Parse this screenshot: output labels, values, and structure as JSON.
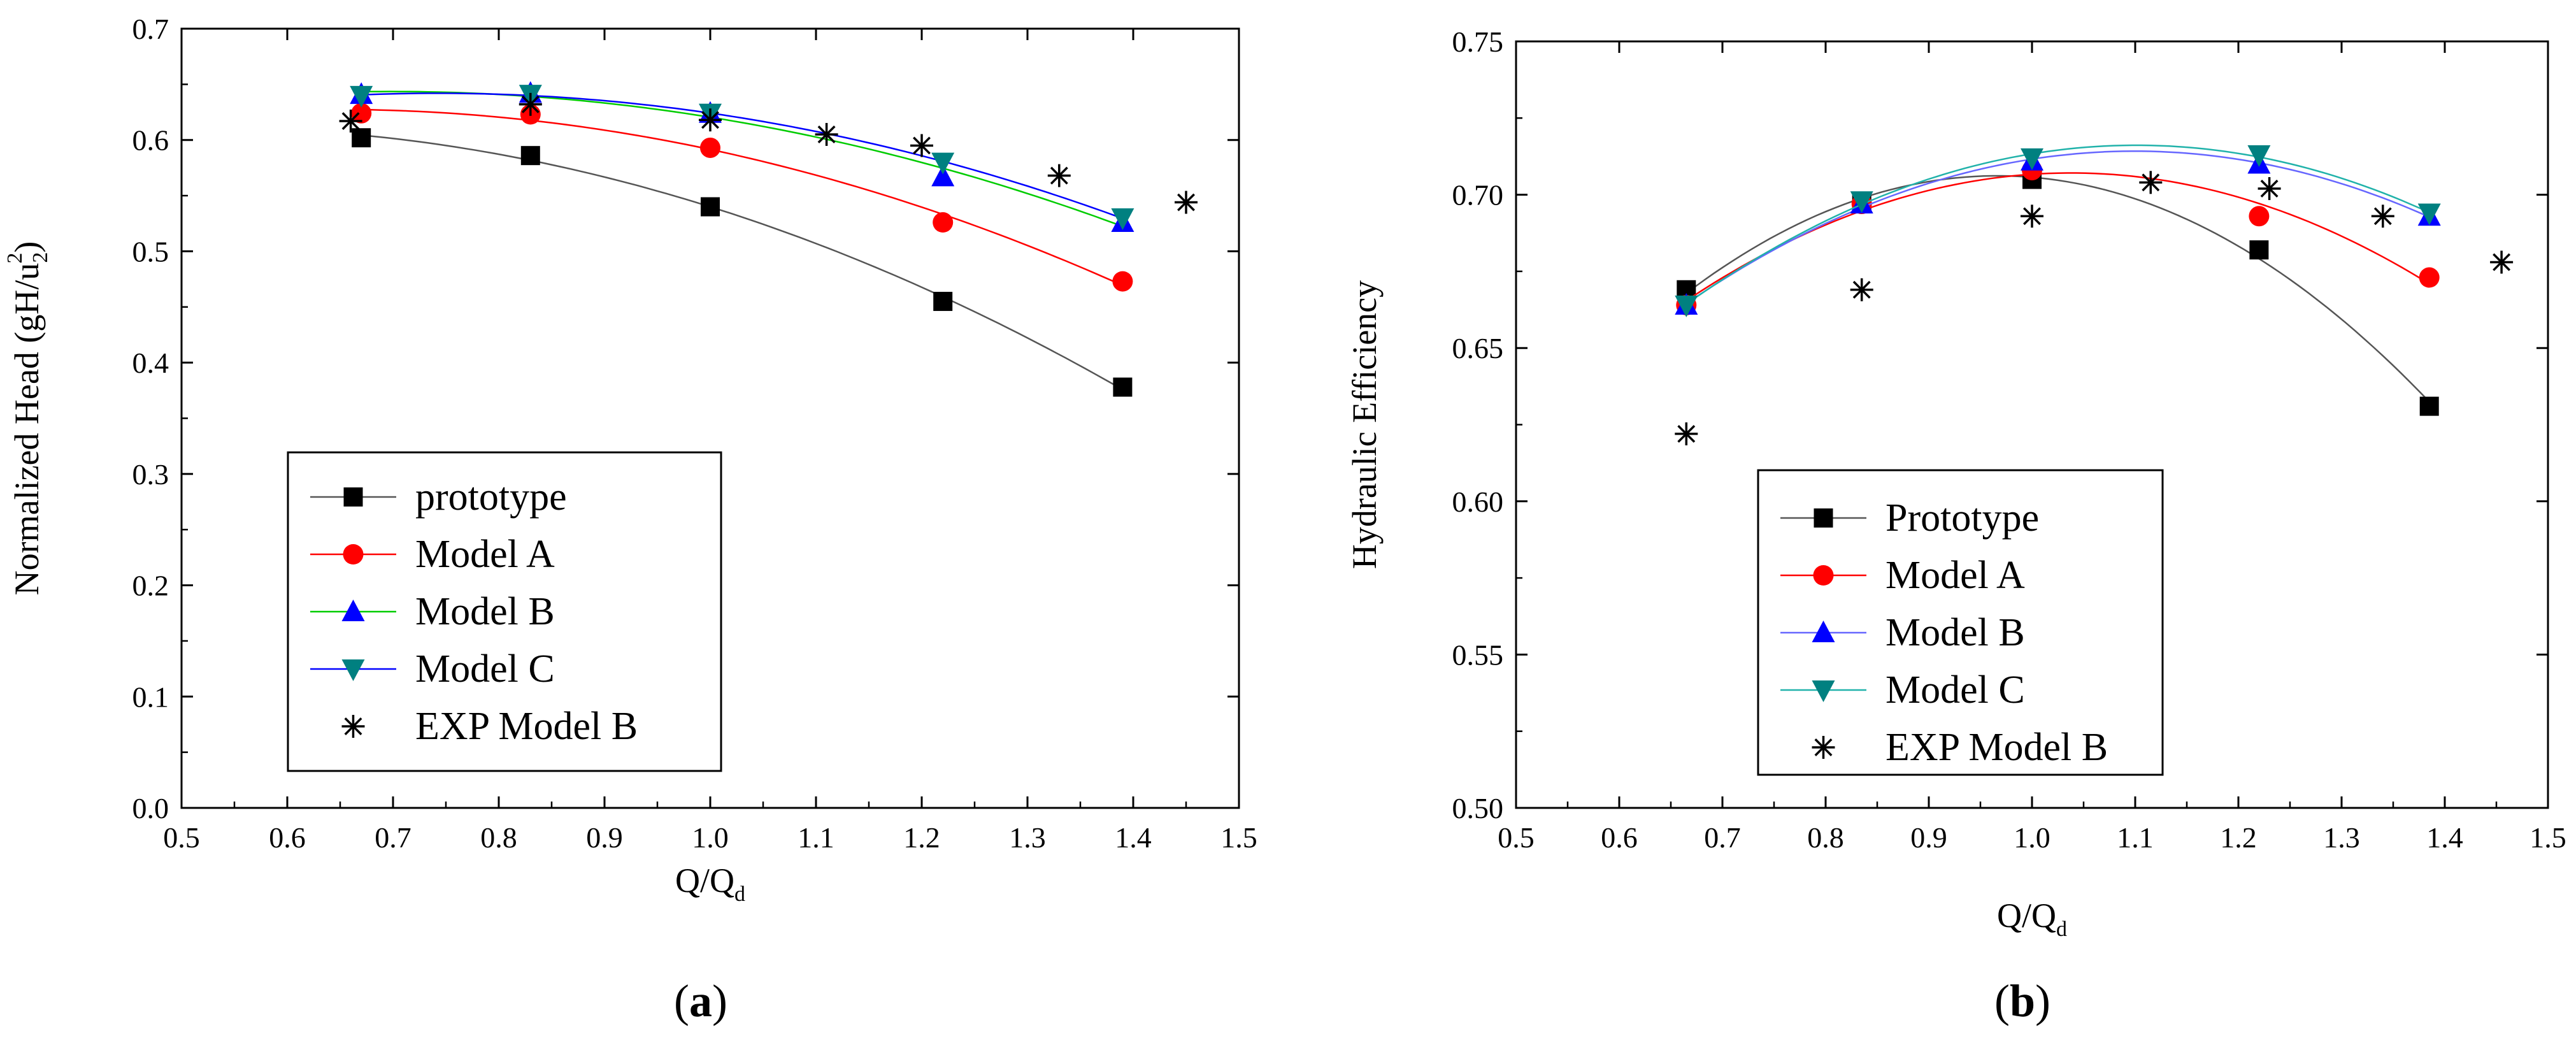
{
  "chart_data": [
    {
      "type": "line",
      "panel_label": "a",
      "xlabel": "Q/Q",
      "xlabel_sub": "d",
      "ylabel": "Normalized Head (gH/u",
      "ylabel_sub": "2",
      "ylabel_sup": "2",
      "ylabel_tail": ")",
      "xlim": [
        0.5,
        1.5
      ],
      "ylim": [
        0.0,
        0.7
      ],
      "xticks": [
        "0.5",
        "0.6",
        "0.7",
        "0.8",
        "0.9",
        "1.0",
        "1.1",
        "1.2",
        "1.3",
        "1.4",
        "1.5"
      ],
      "yticks": [
        "0.0",
        "0.1",
        "0.2",
        "0.3",
        "0.4",
        "0.5",
        "0.6",
        "0.7"
      ],
      "legend_position": "bottom-left",
      "series": [
        {
          "name": "prototype",
          "color": "#000000",
          "line_color": "#555555",
          "marker": "square",
          "x": [
            0.67,
            0.83,
            1.0,
            1.22,
            1.39
          ],
          "y": [
            0.602,
            0.586,
            0.54,
            0.455,
            0.378
          ]
        },
        {
          "name": "Model A",
          "color": "#ff0000",
          "line_color": "#ff0000",
          "marker": "circle",
          "x": [
            0.67,
            0.83,
            1.0,
            1.22,
            1.39
          ],
          "y": [
            0.624,
            0.623,
            0.593,
            0.526,
            0.473
          ]
        },
        {
          "name": "Model B",
          "color": "#0000ff",
          "line_color": "#00cc00",
          "marker": "triangle-up",
          "x": [
            0.67,
            0.83,
            1.0,
            1.22,
            1.39
          ],
          "y": [
            0.641,
            0.642,
            0.624,
            0.567,
            0.526
          ]
        },
        {
          "name": "Model C",
          "color": "#008080",
          "line_color": "#0000ff",
          "marker": "triangle-down",
          "x": [
            0.67,
            0.83,
            1.0,
            1.22,
            1.39
          ],
          "y": [
            0.64,
            0.641,
            0.624,
            0.58,
            0.53
          ]
        },
        {
          "name": "EXP Model B",
          "color": "#000000",
          "line_color": "",
          "marker": "asterisk",
          "x": [
            0.66,
            0.83,
            1.0,
            1.11,
            1.2,
            1.33,
            1.45
          ],
          "y": [
            0.617,
            0.632,
            0.618,
            0.605,
            0.595,
            0.568,
            0.544
          ]
        }
      ]
    },
    {
      "type": "line",
      "panel_label": "b",
      "xlabel": "Q/Q",
      "xlabel_sub": "d",
      "ylabel": "Hydraulic Efficiency",
      "ylabel_sub": "",
      "ylabel_sup": "",
      "ylabel_tail": "",
      "xlim": [
        0.5,
        1.5
      ],
      "ylim": [
        0.5,
        0.75
      ],
      "xticks": [
        "0.5",
        "0.6",
        "0.7",
        "0.8",
        "0.9",
        "1.0",
        "1.1",
        "1.2",
        "1.3",
        "1.4",
        "1.5"
      ],
      "yticks": [
        "0.50",
        "0.55",
        "0.60",
        "0.65",
        "0.70",
        "0.75"
      ],
      "legend_position": "bottom-left",
      "series": [
        {
          "name": "Prototype",
          "color": "#000000",
          "line_color": "#555555",
          "marker": "square",
          "x": [
            0.665,
            0.835,
            1.0,
            1.22,
            1.385
          ],
          "y": [
            0.669,
            0.697,
            0.705,
            0.682,
            0.631
          ]
        },
        {
          "name": "Model A",
          "color": "#ff0000",
          "line_color": "#ff0000",
          "marker": "circle",
          "x": [
            0.665,
            0.835,
            1.0,
            1.22,
            1.385
          ],
          "y": [
            0.664,
            0.697,
            0.708,
            0.693,
            0.673
          ]
        },
        {
          "name": "Model B",
          "color": "#0000ff",
          "line_color": "#6666ff",
          "marker": "triangle-up",
          "x": [
            0.665,
            0.835,
            1.0,
            1.22,
            1.385
          ],
          "y": [
            0.664,
            0.697,
            0.711,
            0.71,
            0.693
          ]
        },
        {
          "name": "Model C",
          "color": "#008080",
          "line_color": "#20b2aa",
          "marker": "triangle-down",
          "x": [
            0.665,
            0.835,
            1.0,
            1.22,
            1.385
          ],
          "y": [
            0.664,
            0.698,
            0.712,
            0.713,
            0.694
          ]
        },
        {
          "name": "EXP Model B",
          "color": "#000000",
          "line_color": "",
          "marker": "asterisk",
          "x": [
            0.665,
            0.835,
            1.0,
            1.115,
            1.23,
            1.34,
            1.455
          ],
          "y": [
            0.622,
            0.669,
            0.693,
            0.704,
            0.702,
            0.693,
            0.678
          ]
        }
      ]
    }
  ]
}
